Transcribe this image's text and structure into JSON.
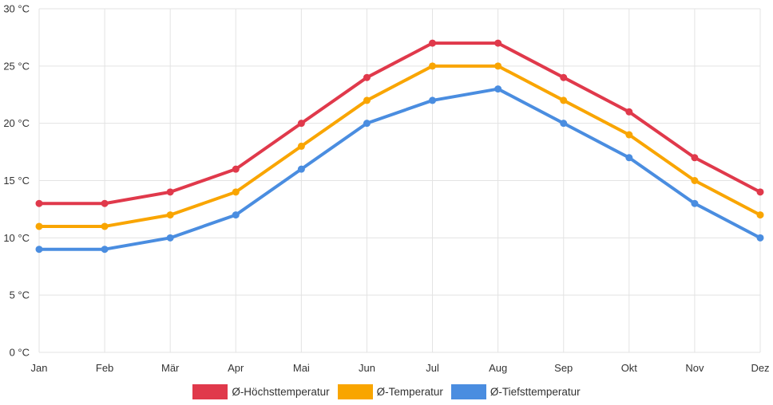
{
  "chart_data": {
    "type": "line",
    "categories": [
      "Jan",
      "Feb",
      "Mär",
      "Apr",
      "Mai",
      "Jun",
      "Jul",
      "Aug",
      "Sep",
      "Okt",
      "Nov",
      "Dez"
    ],
    "ylim": [
      0,
      30
    ],
    "yticks": [
      0,
      5,
      10,
      15,
      20,
      25,
      30
    ],
    "yunit": "°C",
    "grid": true,
    "legend_position": "bottom-center",
    "series": [
      {
        "name": "Ø-Höchsttemperatur",
        "color": "#e0394b",
        "values": [
          13,
          13,
          14,
          16,
          20,
          24,
          27,
          27,
          24,
          21,
          17,
          14
        ]
      },
      {
        "name": "Ø-Temperatur",
        "color": "#f9a500",
        "values": [
          11,
          11,
          12,
          14,
          18,
          22,
          25,
          25,
          22,
          19,
          15,
          12
        ]
      },
      {
        "name": "Ø-Tiefsttemperatur",
        "color": "#4a8de0",
        "values": [
          9,
          9,
          10,
          12,
          16,
          20,
          22,
          23,
          20,
          17,
          13,
          10
        ]
      }
    ]
  }
}
